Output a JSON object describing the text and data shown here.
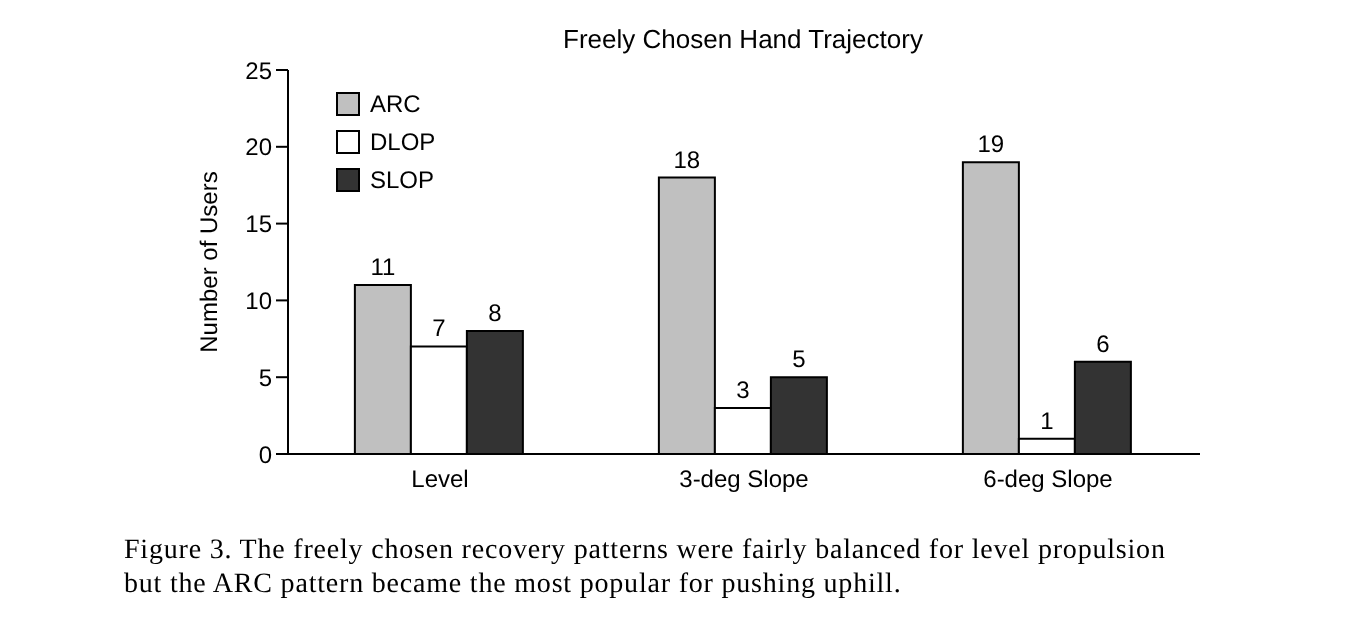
{
  "chart_data": {
    "type": "bar",
    "title": "Freely Chosen Hand Trajectory",
    "ylabel": "Number of Users",
    "categories": [
      "Level",
      "3-deg Slope",
      "6-deg Slope"
    ],
    "series": [
      {
        "name": "ARC",
        "color": "#c0c0c0",
        "values": [
          11,
          18,
          19
        ]
      },
      {
        "name": "DLOP",
        "color": "#ffffff",
        "values": [
          7,
          3,
          1
        ]
      },
      {
        "name": "SLOP",
        "color": "#333333",
        "values": [
          8,
          5,
          6
        ]
      }
    ],
    "ylim": [
      0,
      25
    ],
    "yticks": [
      0,
      5,
      10,
      15,
      20,
      25
    ],
    "legend": "top left",
    "data_labels": true,
    "annotations": [
      "Figure 3. The freely chosen recovery patterns were fairly balanced for level propulsion",
      "but the ARC pattern became the most popular for pushing uphill."
    ]
  }
}
